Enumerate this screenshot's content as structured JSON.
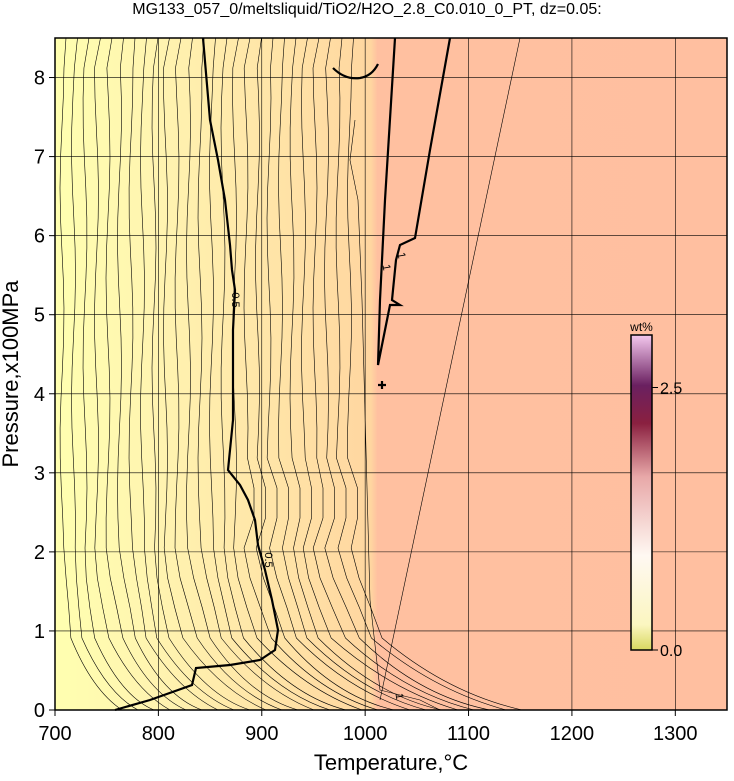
{
  "chart_data": {
    "type": "contour",
    "title": "MG133_057_0/meltsliquid/TiO2/H2O_2.8_C0.010_0_PT, dz=0.05:",
    "x_label": "Temperature,°C",
    "y_label": "Pressure,x100MPa",
    "xlim": [
      700,
      1350
    ],
    "xticks": [
      700,
      800,
      900,
      1000,
      1100,
      1200,
      1300
    ],
    "ylim": [
      0,
      8.5
    ],
    "yticks": [
      0,
      1,
      2,
      3,
      4,
      5,
      6,
      7,
      8
    ],
    "grid": true,
    "contour_levels": [
      0.5,
      1
    ],
    "colorbar": {
      "label": "wt%",
      "lim": [
        0,
        3
      ],
      "ticks": [
        {
          "value": 0,
          "label": "0.0"
        },
        2.5
      ]
    }
  }
}
